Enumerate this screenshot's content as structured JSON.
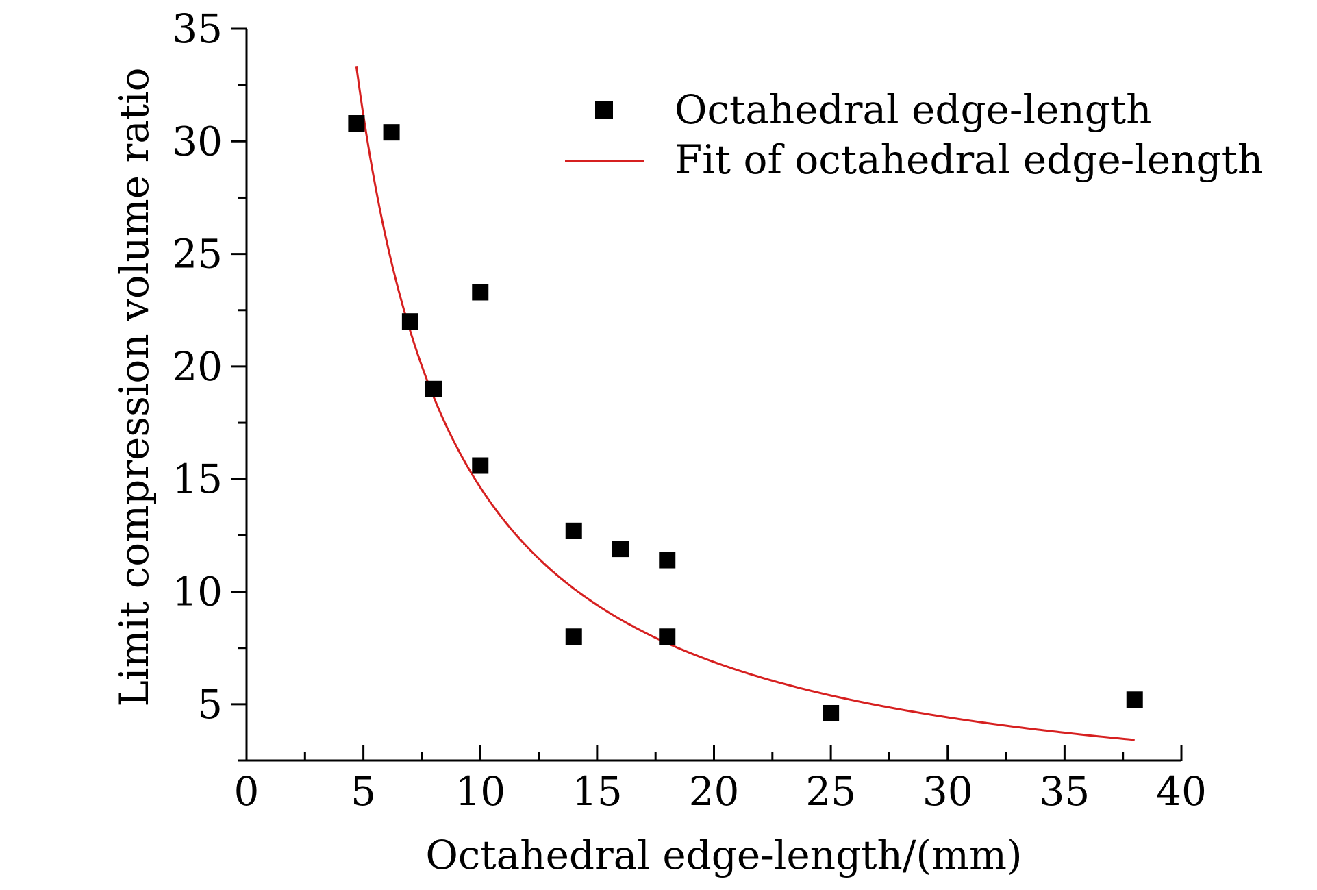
{
  "chart_data": {
    "type": "scatter",
    "title": "",
    "xlabel": "Octahedral edge-length/(mm)",
    "ylabel": "Limit compression volume ratio",
    "xlim": [
      0,
      40
    ],
    "ylim": [
      2.5,
      35
    ],
    "x_ticks": [
      0,
      5,
      10,
      15,
      20,
      25,
      30,
      35,
      40
    ],
    "x_tick_labels": [
      "0",
      "5",
      "10",
      "15",
      "20",
      "25",
      "30",
      "35",
      "40"
    ],
    "y_ticks": [
      5,
      10,
      15,
      20,
      25,
      30,
      35
    ],
    "y_tick_labels": [
      "5",
      "10",
      "15",
      "20",
      "25",
      "30",
      "35"
    ],
    "grid": false,
    "legend_position": "top-right",
    "series": [
      {
        "name": "Octahedral edge-length",
        "kind": "scatter",
        "marker": "square",
        "color": "#000000",
        "points": [
          {
            "x": 4.7,
            "y": 30.8
          },
          {
            "x": 6.2,
            "y": 30.4
          },
          {
            "x": 7.0,
            "y": 22.0
          },
          {
            "x": 8.0,
            "y": 19.0
          },
          {
            "x": 10.0,
            "y": 23.3
          },
          {
            "x": 10.0,
            "y": 15.6
          },
          {
            "x": 14.0,
            "y": 12.7
          },
          {
            "x": 14.0,
            "y": 8.0
          },
          {
            "x": 16.0,
            "y": 11.9
          },
          {
            "x": 18.0,
            "y": 11.4
          },
          {
            "x": 18.0,
            "y": 8.0
          },
          {
            "x": 25.0,
            "y": 4.6
          },
          {
            "x": 38.0,
            "y": 5.2
          }
        ]
      },
      {
        "name": "Fit of octahedral edge-length",
        "kind": "line",
        "color": "#d62020",
        "fit": {
          "model": "power",
          "a": 180,
          "b": -1.09
        },
        "x_range": [
          4.7,
          38.0
        ]
      }
    ]
  }
}
